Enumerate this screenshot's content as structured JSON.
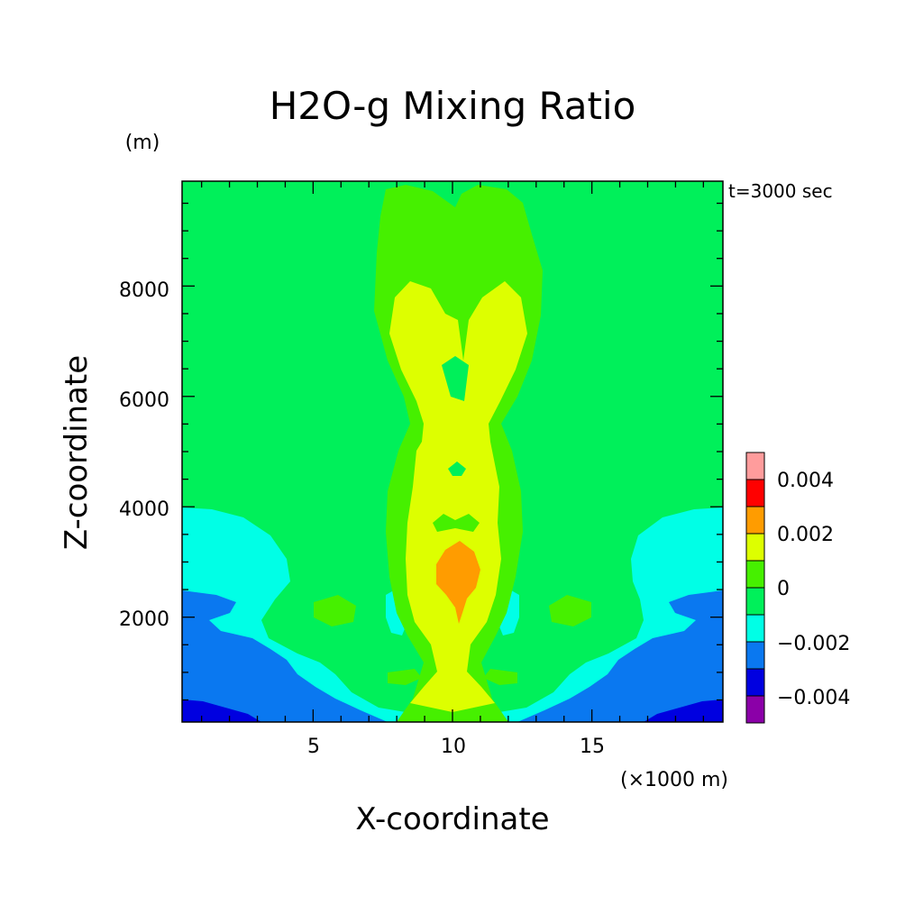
{
  "chart_data": {
    "type": "heatmap",
    "title": "H2O-g Mixing Ratio",
    "y_unit_label": "(m)",
    "x_unit_label": "(×1000 m)",
    "xlabel": "X-coordinate",
    "ylabel": "Z-coordinate",
    "time_label": "t=3000 sec",
    "xlim": [
      0.3,
      19.7
    ],
    "ylim": [
      100,
      9900
    ],
    "x_ticks": [
      5,
      10,
      15
    ],
    "x_tick_labels": [
      "5",
      "10",
      "15"
    ],
    "y_ticks": [
      2000,
      4000,
      6000,
      8000
    ],
    "y_tick_labels": [
      "2000",
      "4000",
      "6000",
      "8000"
    ],
    "colorbar": {
      "levels": [
        {
          "color": "#8b00a8",
          "range": [
            -0.005,
            -0.004
          ]
        },
        {
          "color": "#0000e0",
          "range": [
            -0.004,
            -0.003
          ]
        },
        {
          "color": "#0a78f0",
          "range": [
            -0.003,
            -0.002
          ]
        },
        {
          "color": "#00ffe6",
          "range": [
            -0.002,
            -0.001
          ]
        },
        {
          "color": "#00f05a",
          "range": [
            -0.001,
            0
          ]
        },
        {
          "color": "#46f000",
          "range": [
            0,
            0.001
          ]
        },
        {
          "color": "#ddff00",
          "range": [
            0.001,
            0.002
          ]
        },
        {
          "color": "#ff9c00",
          "range": [
            0.002,
            0.003
          ]
        },
        {
          "color": "#ff0000",
          "range": [
            0.003,
            0.004
          ]
        },
        {
          "color": "#ff9c9c",
          "range": [
            0.004,
            0.005
          ]
        }
      ],
      "tick_labels": [
        "0.004",
        "0.002",
        "0",
        "−0.002",
        "−0.004"
      ]
    }
  }
}
